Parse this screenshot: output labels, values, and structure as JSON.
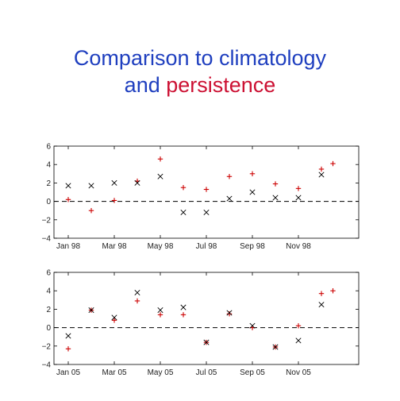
{
  "title": {
    "line1": "Comparison to climatology",
    "line2_a": "and",
    "line2_b": "persistence",
    "color_blue": "#1f3fbf",
    "color_red": "#cc1133"
  },
  "colors": {
    "plus_marker": "#cc0000",
    "x_marker": "#000000",
    "reference_line": "#000000"
  },
  "chart_data": [
    {
      "type": "scatter",
      "title": "",
      "xlabel": "",
      "ylabel": "",
      "xlim": [
        0,
        12
      ],
      "ylim": [
        -4,
        6
      ],
      "yticks": [
        6,
        4,
        2,
        0,
        -2,
        -4
      ],
      "ytick_labels": [
        "6",
        "4",
        "2",
        "0",
        "−2",
        "−4"
      ],
      "xticks": [
        0,
        2,
        4,
        6,
        8,
        10
      ],
      "xtick_labels": [
        "Jan 98",
        "Mar 98",
        "May 98",
        "Jul 98",
        "Sep 98",
        "Nov 98"
      ],
      "reference_line": 0,
      "series": [
        {
          "marker": "plus",
          "x": [
            0,
            1,
            2,
            3,
            4,
            5,
            6,
            7,
            8,
            9,
            10,
            11,
            11.5
          ],
          "y": [
            0.2,
            -1.0,
            0.1,
            2.2,
            4.6,
            1.5,
            1.3,
            2.7,
            3.0,
            1.9,
            1.4,
            3.5,
            4.1
          ]
        },
        {
          "marker": "x",
          "x": [
            0,
            1,
            2,
            3,
            4,
            5,
            6,
            7,
            8,
            9,
            10,
            11
          ],
          "y": [
            1.7,
            1.7,
            2.0,
            2.0,
            2.7,
            -1.2,
            -1.2,
            0.3,
            1.0,
            0.4,
            0.4,
            2.9
          ]
        }
      ]
    },
    {
      "type": "scatter",
      "title": "",
      "xlabel": "",
      "ylabel": "",
      "xlim": [
        0,
        12
      ],
      "ylim": [
        -4,
        6
      ],
      "yticks": [
        6,
        4,
        2,
        0,
        -2,
        -4
      ],
      "ytick_labels": [
        "6",
        "4",
        "2",
        "0",
        "−2",
        "−4"
      ],
      "xticks": [
        0,
        2,
        4,
        6,
        8,
        10
      ],
      "xtick_labels": [
        "Jan 05",
        "Mar 05",
        "May 05",
        "Jul 05",
        "Sep 05",
        "Nov 05"
      ],
      "reference_line": 0,
      "series": [
        {
          "marker": "plus",
          "x": [
            0,
            1,
            2,
            3,
            4,
            5,
            6,
            7,
            8,
            9,
            10,
            11,
            11.5
          ],
          "y": [
            -2.3,
            1.9,
            0.8,
            2.9,
            1.4,
            1.4,
            -1.6,
            1.5,
            0.0,
            -2.1,
            0.2,
            3.7,
            4.0
          ]
        },
        {
          "marker": "x",
          "x": [
            0,
            1,
            2,
            3,
            4,
            5,
            6,
            7,
            8,
            9,
            10,
            11
          ],
          "y": [
            -0.9,
            1.9,
            1.1,
            3.8,
            1.9,
            2.2,
            -1.6,
            1.6,
            0.2,
            -2.1,
            -1.4,
            2.5
          ]
        }
      ]
    }
  ]
}
